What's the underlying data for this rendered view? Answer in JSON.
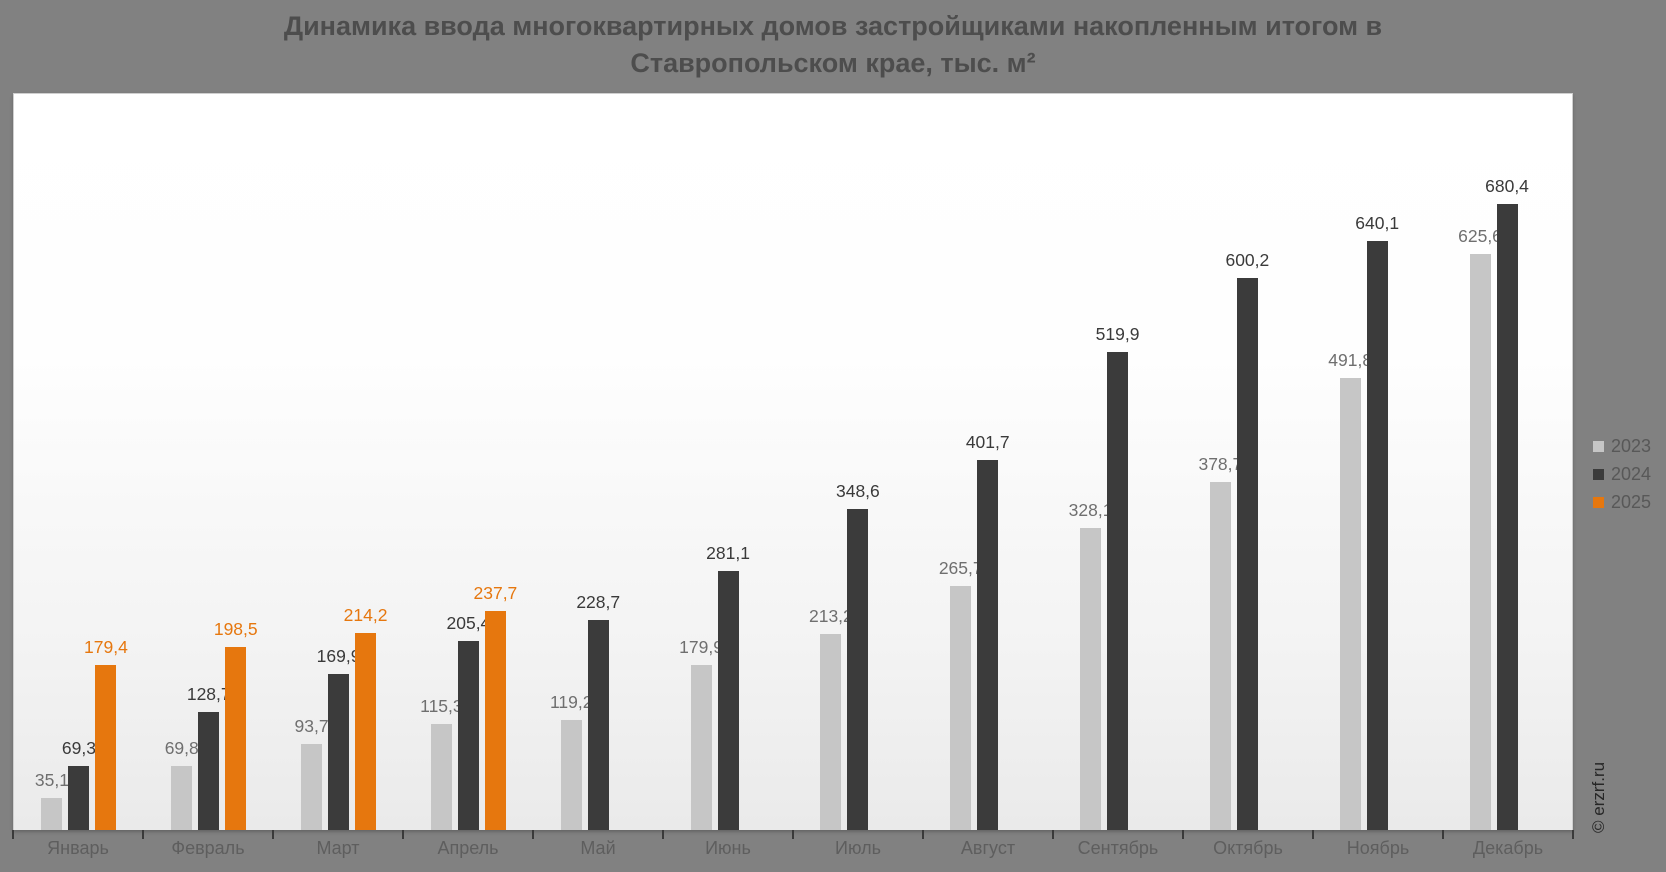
{
  "title": {
    "line1": "Динамика ввода многоквартирных домов застройщиками накопленным итогом в",
    "line2": "Ставропольском крае, тыс. м²"
  },
  "watermark": "© erzrf.ru",
  "chart_data": {
    "type": "bar",
    "title": "Динамика ввода многоквартирных домов застройщиками накопленным итогом в Ставропольском крае, тыс. м²",
    "unit": "тыс. м²",
    "categories": [
      "Январь",
      "Февраль",
      "Март",
      "Апрель",
      "Май",
      "Июнь",
      "Июль",
      "Август",
      "Сентябрь",
      "Октябрь",
      "Ноябрь",
      "Декабрь"
    ],
    "series": [
      {
        "name": "2023",
        "color": "#c6c6c6",
        "label_color": "#6f6f6f",
        "values": [
          35.1,
          69.8,
          93.7,
          115.3,
          119.2,
          179.9,
          213.2,
          265.7,
          328.1,
          378.7,
          491.8,
          625.6
        ]
      },
      {
        "name": "2024",
        "color": "#3b3b3b",
        "label_color": "#3a3a3a",
        "values": [
          69.3,
          128.7,
          169.9,
          205.4,
          228.7,
          281.1,
          348.6,
          401.7,
          519.9,
          600.2,
          640.1,
          680.4
        ]
      },
      {
        "name": "2025",
        "color": "#e6770e",
        "label_color": "#e6770e",
        "values": [
          179.4,
          198.5,
          214.2,
          237.7,
          null,
          null,
          null,
          null,
          null,
          null,
          null,
          null
        ]
      }
    ],
    "ylim": [
      0,
      800
    ],
    "grid": false,
    "legend_position": "right",
    "data_labels": true,
    "decimal_separator": ","
  }
}
